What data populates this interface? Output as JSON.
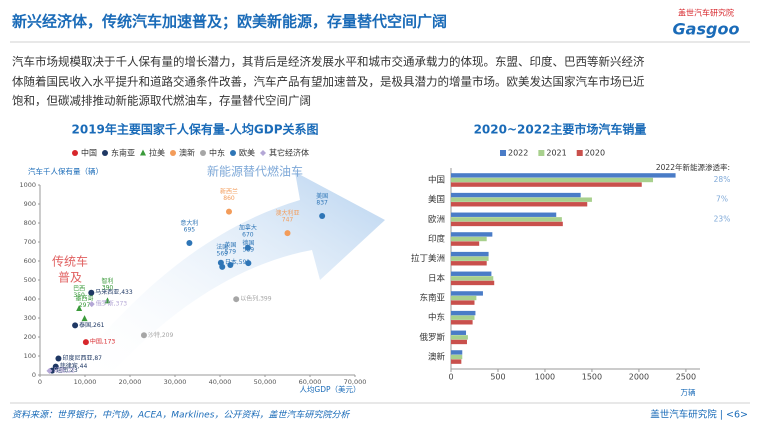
{
  "header": {
    "title": "新兴经济体，传统汽车加速普及；欧美新能源，存量替代空间广阔",
    "logo_cn": "盖世汽车研究院",
    "logo_en": "Gasgoo"
  },
  "body": [
    "汽车市场规模取决于千人保有量的增长潜力，其背后是经济发展水平和城市交通承载力的体现。东盟、印度、巴西等新兴经济",
    "体随着国民收入水平提升和道路交通条件改善，汽车产品有望加速普及，是极具潜力的增量市场。欧美发达国家汽车市场已近",
    "饱和，但碳减排推动新能源取代燃油车，存量替代空间广阔"
  ],
  "chart_data": [
    {
      "type": "scatter",
      "title": "2019年主要国家千人保有量-人均GDP关系图",
      "y_label": "汽车千人保有量（辆）",
      "x_label": "人均GDP（美元）",
      "annotations": [
        "新能源替代燃油车",
        "传统车",
        "普及"
      ],
      "xlim": [
        0,
        70000
      ],
      "ylim": [
        0,
        1000
      ],
      "xticks": [
        0,
        {
          "value": 10000,
          "label": "10,000"
        },
        {
          "value": 20000,
          "label": "20,000"
        },
        {
          "value": 30000,
          "label": "30,000"
        },
        {
          "value": 40000,
          "label": "40,000"
        },
        {
          "value": 50000,
          "label": "50,000"
        },
        {
          "value": 60000,
          "label": "60,000"
        },
        {
          "value": 70000,
          "label": "70,000"
        }
      ],
      "yticks": [
        0,
        100,
        200,
        300,
        400,
        500,
        600,
        700,
        800,
        900,
        1000
      ],
      "series": [
        {
          "name": "中国",
          "color": "#d7262b",
          "marker": "circle",
          "x": [
            10200
          ],
          "values": [
            173
          ],
          "value_labels": [
            "中国,173"
          ]
        },
        {
          "name": "东南亚",
          "color": "#1f3864",
          "marker": "circle",
          "x": [
            11400,
            7800,
            4100,
            3500,
            2700
          ],
          "values": [
            433,
            261,
            87,
            44,
            23
          ],
          "value_labels": [
            "马来西亚,433",
            "泰国,261",
            "印度尼西亚,87",
            "菲律宾,44",
            "越南,23"
          ]
        },
        {
          "name": "拉美",
          "color": "#3a9a3a",
          "marker": "triangle",
          "x": [
            8700,
            9900,
            15000
          ],
          "values": [
            350,
            297,
            390
          ],
          "value_labels": [
            "巴西\n350",
            "墨西哥\n297",
            "智利\n390"
          ]
        },
        {
          "name": "澳新",
          "color": "#f39c5a",
          "marker": "circle",
          "x": [
            42000,
            55000
          ],
          "values": [
            860,
            747
          ],
          "value_labels": [
            "新西兰\n860",
            "澳大利亚\n747"
          ]
        },
        {
          "name": "中东",
          "color": "#a6a6a6",
          "marker": "circle",
          "x": [
            43600,
            23100
          ],
          "values": [
            399,
            209
          ],
          "value_labels": [
            "以色列,399",
            "沙特,209"
          ]
        },
        {
          "name": "欧美",
          "color": "#2e75b6",
          "marker": "circle",
          "x": [
            62700,
            46200,
            33200,
            40200,
            46300,
            40500,
            42300
          ],
          "values": [
            837,
            670,
            695,
            591,
            589,
            569,
            579
          ],
          "value_labels": [
            "美国\n837",
            "加拿大\n670",
            "意大利\n695",
            "日本,591",
            "德国\n589",
            "法国\n569",
            "英国\n579"
          ]
        },
        {
          "name": "其它经济体",
          "color": "#b4a7d6",
          "marker": "diamond",
          "x": [
            11500,
            2100
          ],
          "values": [
            373,
            22
          ],
          "value_labels": [
            "俄罗斯,373",
            "印度,22"
          ]
        }
      ]
    },
    {
      "type": "hbar",
      "title": "2020~2022主要市场汽车销量",
      "x_label": "万辆",
      "categories": [
        "中国",
        "美国",
        "欧洲",
        "印度",
        "拉丁美洲",
        "日本",
        "东南亚",
        "中东",
        "俄罗斯",
        "澳新"
      ],
      "xlim": [
        0,
        2650
      ],
      "xticks": [
        0,
        500,
        1000,
        1500,
        2000,
        2500
      ],
      "series": [
        {
          "name": "2022",
          "color": "#4a7cc7",
          "values": [
            2390,
            1380,
            1120,
            440,
            400,
            430,
            340,
            260,
            160,
            120
          ]
        },
        {
          "name": "2021",
          "color": "#a8d08d",
          "values": [
            2150,
            1500,
            1180,
            380,
            400,
            450,
            270,
            250,
            180,
            120
          ]
        },
        {
          "name": "2020",
          "color": "#c9504c",
          "values": [
            2030,
            1450,
            1190,
            300,
            380,
            460,
            250,
            230,
            170,
            110
          ]
        }
      ],
      "penetration_title": "2022年新能源渗透率:",
      "penetration_values": [
        28,
        7,
        23
      ],
      "penetration_labels": [
        "28%",
        "7%",
        "23%"
      ]
    }
  ],
  "footer": {
    "source": "资料来源：世界银行，中汽协，ACEA，Marklines，公开资料，盖世汽车研究院分析",
    "page": "盖世汽车研究院 | <6>"
  }
}
